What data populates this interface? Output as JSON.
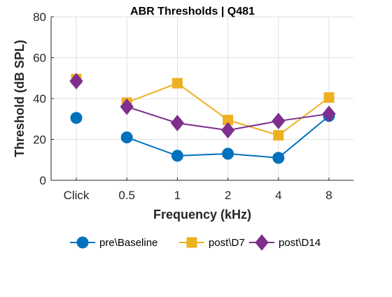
{
  "chart_data": {
    "type": "line",
    "title": "ABR Thresholds | Q481",
    "xlabel": "Frequency (kHz)",
    "ylabel": "Threshold (dB SPL)",
    "categories": [
      "Click",
      "0.5",
      "1",
      "2",
      "4",
      "8"
    ],
    "ylim": [
      0,
      80
    ],
    "yticks": [
      0,
      20,
      40,
      60,
      80
    ],
    "grid": true,
    "legend_position": "bottom",
    "series": [
      {
        "name": "pre\\Baseline",
        "color": "#0072BD",
        "marker": "circle",
        "values": [
          30.5,
          21,
          12,
          13,
          11,
          31.5
        ]
      },
      {
        "name": "post\\D7",
        "color": "#EDB120",
        "marker": "square",
        "values": [
          49.5,
          38,
          47.5,
          29.5,
          22,
          40.5
        ]
      },
      {
        "name": "post\\D14",
        "color": "#7E2F8E",
        "marker": "diamond",
        "values": [
          48.5,
          36,
          28,
          24.5,
          29,
          32.5
        ]
      }
    ]
  }
}
